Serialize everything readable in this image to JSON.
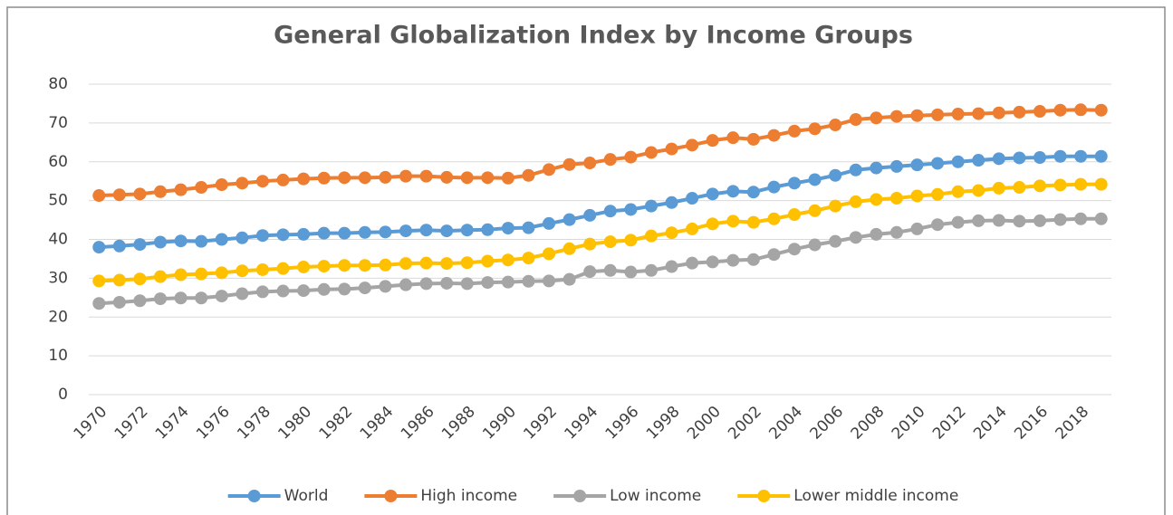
{
  "chart_data": {
    "type": "line",
    "title": "General Globalization Index by Income Groups",
    "x": [
      1970,
      1971,
      1972,
      1973,
      1974,
      1975,
      1976,
      1977,
      1978,
      1979,
      1980,
      1981,
      1982,
      1983,
      1984,
      1985,
      1986,
      1987,
      1988,
      1989,
      1990,
      1991,
      1992,
      1993,
      1994,
      1995,
      1996,
      1997,
      1998,
      1999,
      2000,
      2001,
      2002,
      2003,
      2004,
      2005,
      2006,
      2007,
      2008,
      2009,
      2010,
      2011,
      2012,
      2013,
      2014,
      2015,
      2016,
      2017,
      2018,
      2019
    ],
    "xlim": [
      1969.5,
      2019.5
    ],
    "xticks": [
      1970,
      1972,
      1974,
      1976,
      1978,
      1980,
      1982,
      1984,
      1986,
      1988,
      1990,
      1992,
      1994,
      1996,
      1998,
      2000,
      2002,
      2004,
      2006,
      2008,
      2010,
      2012,
      2014,
      2016,
      2018
    ],
    "ylim": [
      0,
      80
    ],
    "yticks": [
      0,
      10,
      20,
      30,
      40,
      50,
      60,
      70,
      80
    ],
    "grid": true,
    "legend": "bottom",
    "series": [
      {
        "name": "World",
        "color": "#5b9bd5",
        "values": [
          38,
          38.3,
          38.7,
          39.3,
          39.6,
          39.5,
          40,
          40.4,
          41,
          41.2,
          41.3,
          41.6,
          41.6,
          41.8,
          41.9,
          42.2,
          42.4,
          42.2,
          42.4,
          42.5,
          42.9,
          43,
          44.1,
          45.1,
          46.2,
          47.3,
          47.7,
          48.6,
          49.5,
          50.6,
          51.7,
          52.4,
          52.2,
          53.5,
          54.5,
          55.4,
          56.5,
          57.9,
          58.4,
          58.8,
          59.2,
          59.6,
          60,
          60.4,
          60.8,
          61,
          61.1,
          61.4,
          61.4,
          61.4
        ]
      },
      {
        "name": "High income",
        "color": "#ed7d31",
        "values": [
          51.3,
          51.5,
          51.7,
          52.3,
          52.8,
          53.4,
          54.1,
          54.5,
          55,
          55.3,
          55.6,
          55.8,
          55.9,
          55.9,
          56,
          56.3,
          56.3,
          56,
          55.9,
          55.9,
          55.8,
          56.5,
          58,
          59.3,
          59.7,
          60.6,
          61.2,
          62.4,
          63.3,
          64.3,
          65.5,
          66.2,
          65.8,
          66.8,
          67.9,
          68.5,
          69.5,
          70.9,
          71.3,
          71.7,
          71.9,
          72.1,
          72.3,
          72.4,
          72.6,
          72.8,
          73,
          73.3,
          73.4,
          73.3
        ]
      },
      {
        "name": "Low income",
        "color": "#a5a5a5",
        "values": [
          23.5,
          23.8,
          24.2,
          24.7,
          24.9,
          24.9,
          25.4,
          26,
          26.5,
          26.7,
          26.8,
          27.1,
          27.2,
          27.5,
          27.9,
          28.3,
          28.6,
          28.7,
          28.6,
          28.9,
          29,
          29.2,
          29.3,
          29.7,
          31.7,
          32,
          31.6,
          32,
          33,
          33.9,
          34.2,
          34.6,
          34.8,
          36.1,
          37.5,
          38.6,
          39.5,
          40.5,
          41.3,
          41.8,
          42.7,
          43.8,
          44.4,
          44.8,
          44.9,
          44.7,
          44.8,
          45.1,
          45.3,
          45.3
        ]
      },
      {
        "name": "Lower middle income",
        "color": "#ffc000",
        "values": [
          29.3,
          29.5,
          29.8,
          30.4,
          30.9,
          31.1,
          31.4,
          31.9,
          32.2,
          32.5,
          32.9,
          33.1,
          33.3,
          33.3,
          33.4,
          33.8,
          33.9,
          33.8,
          34,
          34.4,
          34.7,
          35.2,
          36.3,
          37.6,
          38.8,
          39.4,
          39.8,
          40.9,
          41.7,
          42.7,
          44,
          44.7,
          44.4,
          45.3,
          46.4,
          47.4,
          48.6,
          49.7,
          50.3,
          50.6,
          51.2,
          51.6,
          52.3,
          52.6,
          53.2,
          53.4,
          53.8,
          54,
          54.2,
          54.2
        ]
      }
    ]
  }
}
